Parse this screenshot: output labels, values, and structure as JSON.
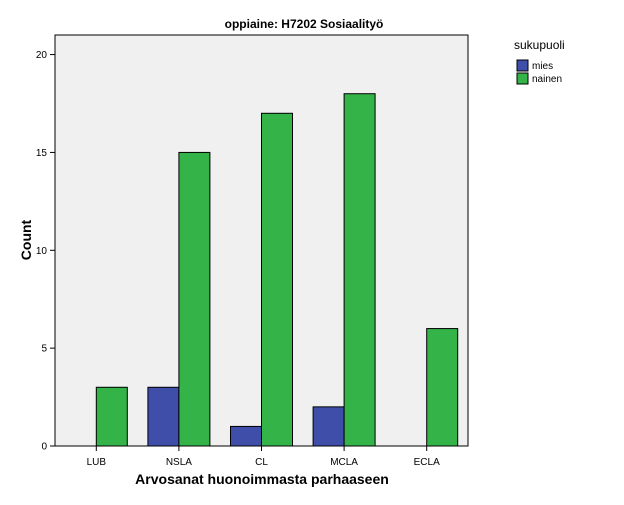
{
  "chart_data": {
    "type": "bar",
    "title": "oppiaine: H7202 Sosiaalityö",
    "xlabel": "Arvosanat huonoimmasta parhaaseen",
    "ylabel": "Count",
    "categories": [
      "LUB",
      "NSLA",
      "CL",
      "MCLA",
      "ECLA"
    ],
    "series": [
      {
        "name": "mies",
        "color": "#3e4ea9",
        "values": [
          0,
          3,
          1,
          2,
          0
        ]
      },
      {
        "name": "nainen",
        "color": "#33b348",
        "values": [
          3,
          15,
          17,
          18,
          6
        ]
      }
    ],
    "ylim": [
      0,
      21
    ],
    "yticks": [
      "0",
      "5",
      "10",
      "15",
      "20"
    ],
    "legend": {
      "title": "sukupuoli",
      "position": "right"
    },
    "grid": false,
    "plot_background": "#f0f0f0"
  }
}
